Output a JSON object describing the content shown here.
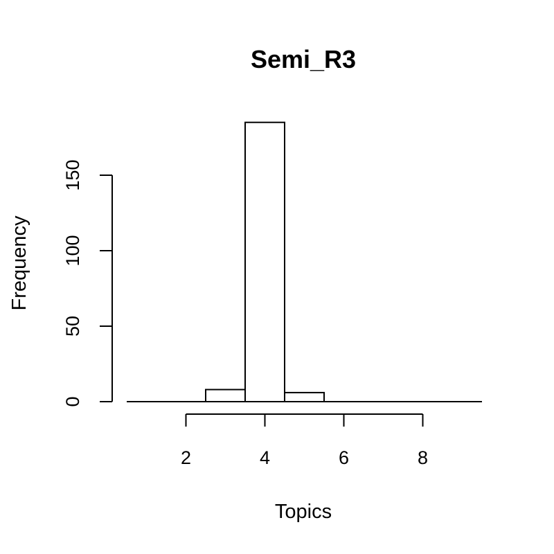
{
  "chart_data": {
    "type": "bar",
    "title": "Semi_R3",
    "xlabel": "Topics",
    "ylabel": "Frequency",
    "bins": [
      {
        "start": 0.5,
        "end": 1.5,
        "count": 0
      },
      {
        "start": 1.5,
        "end": 2.5,
        "count": 0
      },
      {
        "start": 2.5,
        "end": 3.5,
        "count": 8
      },
      {
        "start": 3.5,
        "end": 4.5,
        "count": 185
      },
      {
        "start": 4.5,
        "end": 5.5,
        "count": 6
      },
      {
        "start": 5.5,
        "end": 6.5,
        "count": 0
      },
      {
        "start": 6.5,
        "end": 7.5,
        "count": 0
      },
      {
        "start": 7.5,
        "end": 8.5,
        "count": 0
      },
      {
        "start": 8.5,
        "end": 9.5,
        "count": 0
      }
    ],
    "xlim": [
      0.5,
      9.5
    ],
    "ylim": [
      0,
      190
    ],
    "x_ticks": [
      2,
      4,
      6,
      8
    ],
    "y_ticks": [
      0,
      50,
      100,
      150
    ],
    "x_tick_labels": [
      "2",
      "4",
      "6",
      "8"
    ],
    "y_tick_labels": [
      "0",
      "50",
      "100",
      "150"
    ]
  }
}
